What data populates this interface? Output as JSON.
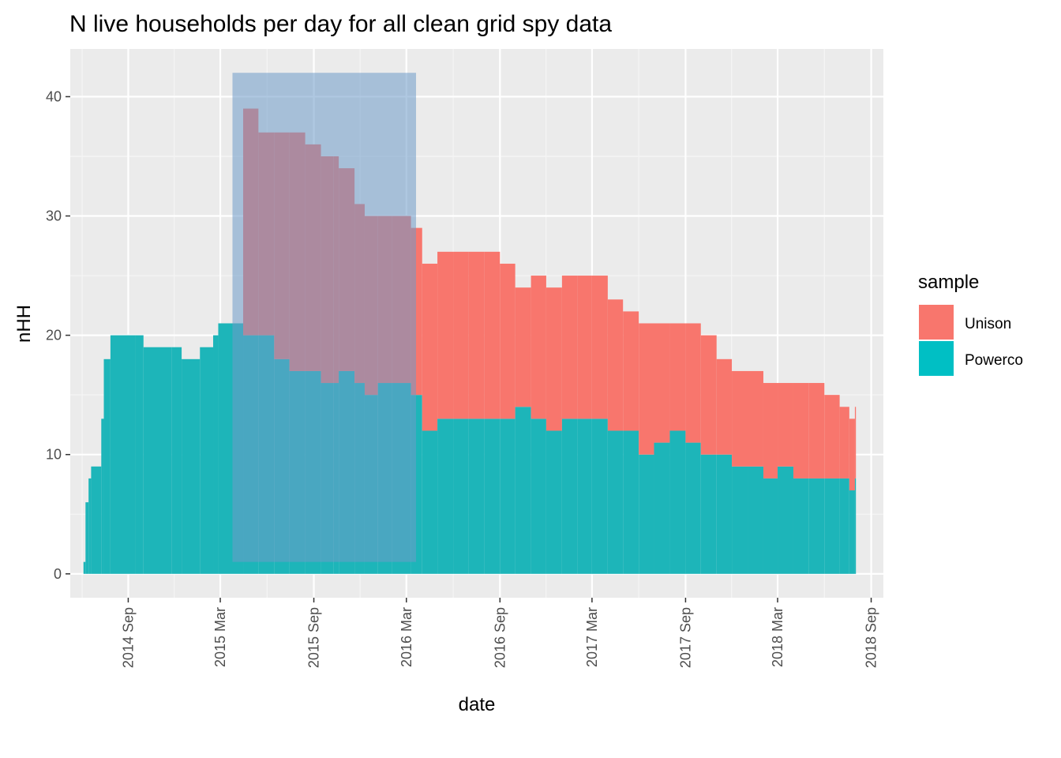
{
  "chart_data": {
    "type": "bar",
    "stacked": true,
    "title": "N live households per day for all clean grid spy data",
    "xlabel": "date",
    "ylabel": "nHH",
    "ylim": [
      -2,
      44
    ],
    "y_ticks": [
      0,
      10,
      20,
      30,
      40
    ],
    "y_tick_labels": [
      "0",
      "10",
      "20",
      "30",
      "40"
    ],
    "xlim": [
      "2014-05-10",
      "2018-09-25"
    ],
    "x_ticks": [
      "2014-09-01",
      "2015-03-01",
      "2015-09-01",
      "2016-03-01",
      "2016-09-01",
      "2017-03-01",
      "2017-09-01",
      "2018-03-01",
      "2018-09-01"
    ],
    "x_tick_labels": [
      "2014 Sep",
      "2015 Mar",
      "2015 Sep",
      "2016 Mar",
      "2016 Sep",
      "2017 Mar",
      "2017 Sep",
      "2018 Mar",
      "2018 Sep"
    ],
    "grid": true,
    "legend": {
      "title": "sample",
      "placement": "right",
      "entries": [
        {
          "label": "Unison",
          "color": "#F8766D"
        },
        {
          "label": "Powerco",
          "color": "#00BFC4"
        }
      ]
    },
    "series": [
      {
        "name": "Powerco",
        "color": "#1DB5B9",
        "points": [
          [
            "2014-06-05",
            1
          ],
          [
            "2014-06-09",
            6
          ],
          [
            "2014-06-15",
            8
          ],
          [
            "2014-06-20",
            9
          ],
          [
            "2014-07-10",
            13
          ],
          [
            "2014-07-15",
            18
          ],
          [
            "2014-07-28",
            20
          ],
          [
            "2014-09-15",
            20
          ],
          [
            "2014-10-01",
            19
          ],
          [
            "2014-11-25",
            19
          ],
          [
            "2014-12-15",
            18
          ],
          [
            "2015-01-20",
            19
          ],
          [
            "2015-02-15",
            20
          ],
          [
            "2015-02-25",
            21
          ],
          [
            "2015-04-15",
            20
          ],
          [
            "2015-05-15",
            20
          ],
          [
            "2015-06-15",
            18
          ],
          [
            "2015-07-15",
            17
          ],
          [
            "2015-08-15",
            17
          ],
          [
            "2015-09-15",
            16
          ],
          [
            "2015-10-10",
            16
          ],
          [
            "2015-10-20",
            17
          ],
          [
            "2015-11-20",
            16
          ],
          [
            "2015-12-10",
            15
          ],
          [
            "2016-01-05",
            16
          ],
          [
            "2016-02-01",
            16
          ],
          [
            "2016-03-10",
            15
          ],
          [
            "2016-04-01",
            12
          ],
          [
            "2016-05-01",
            13
          ],
          [
            "2016-06-01",
            13
          ],
          [
            "2016-07-01",
            13
          ],
          [
            "2016-08-01",
            13
          ],
          [
            "2016-09-01",
            13
          ],
          [
            "2016-10-01",
            14
          ],
          [
            "2016-11-01",
            13
          ],
          [
            "2016-12-01",
            12
          ],
          [
            "2017-01-01",
            13
          ],
          [
            "2017-02-01",
            13
          ],
          [
            "2017-03-01",
            13
          ],
          [
            "2017-04-01",
            12
          ],
          [
            "2017-05-01",
            12
          ],
          [
            "2017-06-01",
            10
          ],
          [
            "2017-07-01",
            11
          ],
          [
            "2017-08-01",
            12
          ],
          [
            "2017-09-01",
            11
          ],
          [
            "2017-10-01",
            10
          ],
          [
            "2017-11-01",
            10
          ],
          [
            "2017-12-01",
            9
          ],
          [
            "2018-01-01",
            9
          ],
          [
            "2018-02-01",
            8
          ],
          [
            "2018-03-01",
            9
          ],
          [
            "2018-04-01",
            8
          ],
          [
            "2018-05-01",
            8
          ],
          [
            "2018-06-01",
            8
          ],
          [
            "2018-07-01",
            8
          ],
          [
            "2018-07-20",
            7
          ],
          [
            "2018-07-31",
            8
          ]
        ]
      },
      {
        "name": "Unison",
        "color": "#F8766D",
        "points": [
          [
            "2015-03-22",
            21
          ],
          [
            "2015-03-28",
            20
          ],
          [
            "2015-04-15",
            19
          ],
          [
            "2015-05-15",
            17
          ],
          [
            "2015-06-15",
            19
          ],
          [
            "2015-07-15",
            20
          ],
          [
            "2015-08-15",
            19
          ],
          [
            "2015-09-15",
            19
          ],
          [
            "2015-10-10",
            19
          ],
          [
            "2015-10-20",
            17
          ],
          [
            "2015-11-20",
            15
          ],
          [
            "2015-12-10",
            15
          ],
          [
            "2016-01-05",
            14
          ],
          [
            "2016-02-01",
            14
          ],
          [
            "2016-03-10",
            14
          ],
          [
            "2016-04-01",
            14
          ],
          [
            "2016-05-01",
            14
          ],
          [
            "2016-06-01",
            14
          ],
          [
            "2016-07-01",
            14
          ],
          [
            "2016-08-01",
            14
          ],
          [
            "2016-09-01",
            13
          ],
          [
            "2016-10-01",
            10
          ],
          [
            "2016-11-01",
            12
          ],
          [
            "2016-12-01",
            12
          ],
          [
            "2017-01-01",
            12
          ],
          [
            "2017-02-01",
            12
          ],
          [
            "2017-03-01",
            12
          ],
          [
            "2017-04-01",
            11
          ],
          [
            "2017-05-01",
            10
          ],
          [
            "2017-06-01",
            11
          ],
          [
            "2017-07-01",
            10
          ],
          [
            "2017-08-01",
            9
          ],
          [
            "2017-09-01",
            10
          ],
          [
            "2017-10-01",
            10
          ],
          [
            "2017-11-01",
            8
          ],
          [
            "2017-12-01",
            8
          ],
          [
            "2018-01-01",
            8
          ],
          [
            "2018-02-01",
            8
          ],
          [
            "2018-03-01",
            7
          ],
          [
            "2018-04-01",
            8
          ],
          [
            "2018-05-01",
            8
          ],
          [
            "2018-06-01",
            7
          ],
          [
            "2018-07-01",
            6
          ],
          [
            "2018-07-20",
            6
          ],
          [
            "2018-07-31",
            6
          ]
        ]
      }
    ],
    "overlay_rect": {
      "x_start": "2015-03-25",
      "x_end": "2016-03-20",
      "y_min": 1,
      "y_max": 42,
      "color": "#6E9BC9",
      "opacity": 0.55
    }
  }
}
